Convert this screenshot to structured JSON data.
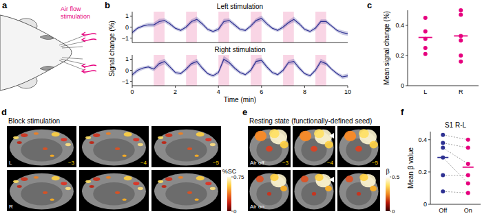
{
  "chart_data": [
    {
      "type": "line",
      "panel_label": "b",
      "title": "Left stimulation",
      "y_label": "Signal change (%)",
      "tick_labels": "y",
      "x": [
        0,
        0.25,
        0.5,
        0.75,
        1,
        1.25,
        1.5,
        1.75,
        2,
        2.25,
        2.5,
        2.75,
        3,
        3.25,
        3.5,
        3.75,
        4,
        4.25,
        4.5,
        4.75,
        5,
        5.25,
        5.5,
        5.75,
        6,
        6.25,
        6.5,
        6.75,
        7,
        7.25,
        7.5,
        7.75,
        8,
        8.25,
        8.5,
        8.75,
        9,
        9.25,
        9.5,
        9.75,
        10
      ],
      "series": [
        {
          "color": "#2e3192",
          "values": [
            -0.5,
            -0.1,
            0.1,
            0.2,
            0.2,
            0.5,
            0.6,
            0.3,
            -0.1,
            -0.3,
            0.0,
            0.5,
            0.7,
            0.3,
            -0.2,
            -0.4,
            -0.2,
            0.5,
            0.6,
            0.2,
            -0.2,
            -0.3,
            0.1,
            0.6,
            0.8,
            0.3,
            -0.1,
            -0.3,
            0.0,
            0.4,
            0.7,
            0.3,
            -0.2,
            -0.4,
            -0.1,
            0.5,
            0.5,
            0.1,
            -0.3,
            -0.5,
            -0.6
          ],
          "error": [
            0.2,
            0.15,
            0.15,
            0.2,
            0.2,
            0.25,
            0.2,
            0.2,
            0.15,
            0.15,
            0.2,
            0.2,
            0.25,
            0.2,
            0.15,
            0.15,
            0.2,
            0.25,
            0.2,
            0.2,
            0.15,
            0.15,
            0.2,
            0.2,
            0.25,
            0.2,
            0.15,
            0.15,
            0.2,
            0.2,
            0.25,
            0.2,
            0.15,
            0.15,
            0.2,
            0.2,
            0.2,
            0.15,
            0.15,
            0.2,
            0.2
          ]
        }
      ],
      "stim_blocks": [
        [
          1,
          1.5
        ],
        [
          2.5,
          3
        ],
        [
          4,
          4.5
        ],
        [
          5.5,
          6
        ],
        [
          7,
          7.5
        ],
        [
          8.5,
          9
        ]
      ],
      "xlim": [
        0,
        10
      ],
      "ylim": [
        -1.4,
        1.4
      ],
      "yticks": [
        {
          "value": -1,
          "label": "−1"
        },
        0,
        1
      ]
    },
    {
      "type": "line",
      "title": "Right stimulation",
      "x_label": "Time (min)",
      "x": [
        0,
        0.25,
        0.5,
        0.75,
        1,
        1.25,
        1.5,
        1.75,
        2,
        2.25,
        2.5,
        2.75,
        3,
        3.25,
        3.5,
        3.75,
        4,
        4.25,
        4.5,
        4.75,
        5,
        5.25,
        5.5,
        5.75,
        6,
        6.25,
        6.5,
        6.75,
        7,
        7.25,
        7.5,
        7.75,
        8,
        8.25,
        8.5,
        8.75,
        9,
        9.25,
        9.5,
        9.75,
        10
      ],
      "series": [
        {
          "color": "#2e3192",
          "values": [
            -0.4,
            0.0,
            0.2,
            0.3,
            0.1,
            0.6,
            0.8,
            0.3,
            -0.2,
            -0.3,
            0.1,
            0.6,
            0.8,
            0.2,
            -0.3,
            -0.5,
            -0.2,
            1.0,
            0.7,
            0.2,
            -0.2,
            -0.4,
            0.0,
            0.8,
            0.9,
            0.3,
            -0.2,
            -0.4,
            0.0,
            0.7,
            0.8,
            0.2,
            -0.3,
            -0.5,
            0.0,
            0.8,
            0.6,
            0.1,
            -0.3,
            -0.6,
            -0.5
          ],
          "error": [
            0.2,
            0.2,
            0.15,
            0.15,
            0.2,
            0.25,
            0.25,
            0.2,
            0.15,
            0.15,
            0.2,
            0.2,
            0.25,
            0.2,
            0.15,
            0.15,
            0.2,
            0.3,
            0.25,
            0.2,
            0.15,
            0.15,
            0.2,
            0.25,
            0.25,
            0.2,
            0.15,
            0.15,
            0.2,
            0.2,
            0.25,
            0.2,
            0.15,
            0.15,
            0.2,
            0.25,
            0.2,
            0.15,
            0.15,
            0.2,
            0.2
          ]
        }
      ],
      "stim_blocks": [
        [
          1,
          1.5
        ],
        [
          2.5,
          3
        ],
        [
          4,
          4.5
        ],
        [
          5.5,
          6
        ],
        [
          7,
          7.5
        ],
        [
          8.5,
          9
        ]
      ],
      "xlim": [
        0,
        10
      ],
      "xticks": [
        0,
        2,
        4,
        6,
        8,
        10
      ],
      "ylim": [
        -1.4,
        1.4
      ],
      "yticks": [
        {
          "value": -1,
          "label": "−1"
        },
        0,
        1
      ]
    },
    {
      "type": "strip",
      "panel_label": "c",
      "y_label": "Mean signal change (%)",
      "categories": [
        "L",
        "R"
      ],
      "points": [
        [
          0.45,
          0.36,
          0.31,
          0.25,
          0.21
        ],
        [
          0.5,
          0.47,
          0.33,
          0.3,
          0.2,
          0.16
        ]
      ],
      "means": [
        0.32,
        0.33
      ],
      "color": "#e6007e",
      "ylim": [
        0,
        0.5
      ],
      "yticks": [
        0,
        0.2,
        0.4
      ]
    },
    {
      "type": "paired_strip",
      "panel_label": "f",
      "title": "S1 R-L",
      "y_label": "Mean β value",
      "categories": [
        "Off",
        "On"
      ],
      "colors": [
        "#2e3192",
        "#e6007e"
      ],
      "points": [
        [
          0.43,
          0.38,
          0.35,
          0.29,
          0.18,
          0.08
        ],
        [
          0.4,
          0.35,
          0.25,
          0.13,
          0.18,
          0.07
        ]
      ],
      "means": [
        0.29,
        0.23
      ],
      "line_style": "dashed",
      "ylim": [
        0,
        0.45
      ],
      "yticks": [
        0,
        0.2,
        0.4
      ]
    }
  ],
  "panel_a": {
    "panel_label": "a",
    "annotation_lines": [
      "Air flow",
      "stimulation"
    ]
  },
  "panel_d": {
    "panel_label": "d",
    "title": "Block stimulation",
    "rows": [
      "L",
      "R"
    ],
    "slices": [
      "−3",
      "−4",
      "−5"
    ],
    "colorbar": {
      "label": "%SC",
      "range": [
        0,
        0.75
      ],
      "ticks": [
        0,
        0.75
      ]
    }
  },
  "panel_e": {
    "panel_label": "e",
    "title": "Resting state (functionally-defined seed)",
    "rows": [
      "Air off",
      "Air on"
    ],
    "slices": [
      "−3",
      "−4",
      "−5"
    ],
    "colorbar": {
      "label": "β",
      "range": [
        0,
        0.5
      ],
      "ticks": [
        0,
        0.5
      ]
    }
  }
}
